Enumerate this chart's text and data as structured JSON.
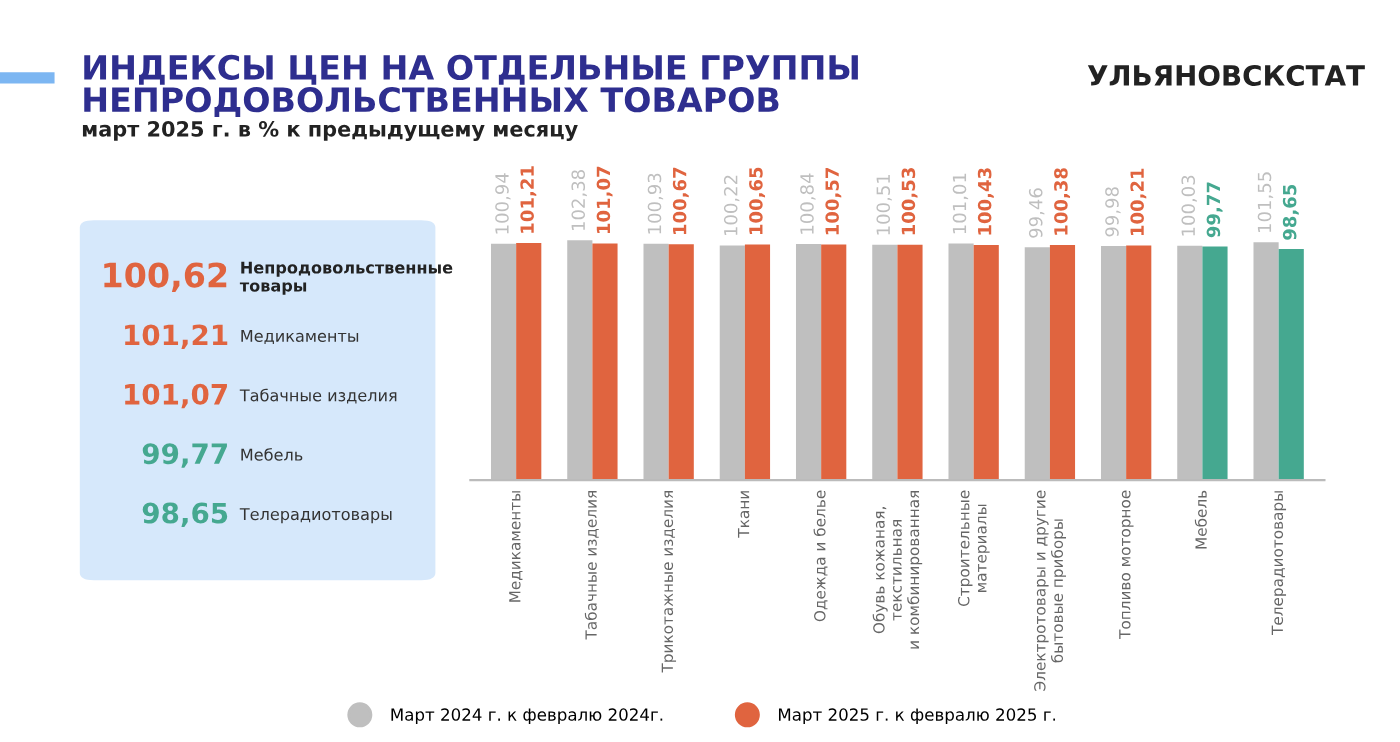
{
  "chart_data": [
    {
      "type": "other",
      "categories": [
        "Непродовольственные\nтовары",
        "Медикаменты",
        "Табачные изделия",
        "Мебель",
        "Телерадиотовары"
      ],
      "value_labels": [
        "100,62",
        "101,21",
        "101,07",
        "99,77",
        "98,65"
      ],
      "colors": [
        "#e0643f",
        "#e0643f",
        "#e0643f",
        "#45a890",
        "#45a890"
      ]
    },
    {
      "type": "bar",
      "title": "ИНДЕКСЫ ЦЕН НА ОТДЕЛЬНЫЕ ГРУППЫ\nНЕПРОДОВОЛЬСТВЕННЫХ ТОВАРОВ",
      "subtitle": "март 2025 г. в % к предыдущему месяцу",
      "annotations": [
        "УЛЬЯНОВСКСТАТ"
      ],
      "categories": [
        "Медикаменты",
        "Табачные изделия",
        "Трикотажные изделия",
        "Ткани",
        "Одежда и белье",
        "Обувь кожаная,\nтекстильная\nи комбинированная",
        "Строительные\nматериалы",
        "Электротовары и другие\nбытовые приборы",
        "Топливо моторное",
        "Мебель",
        "Телерадиотовары"
      ],
      "series": [
        {
          "name": "Март 2024 г. к февралю 2024г.",
          "color": "#bfbfbf",
          "values": [
            100.94,
            102.38,
            100.93,
            100.22,
            100.84,
            100.51,
            101.01,
            99.46,
            99.98,
            100.03,
            101.55
          ],
          "value_labels": [
            "100,94",
            "102,38",
            "100,93",
            "100,22",
            "100,84",
            "100,51",
            "101,01",
            "99,46",
            "99,98",
            "100,03",
            "101,55"
          ]
        },
        {
          "name": "Март 2025 г. к февралю 2025 г.",
          "color": "#e0643f",
          "colors": [
            "#e0643f",
            "#e0643f",
            "#e0643f",
            "#e0643f",
            "#e0643f",
            "#e0643f",
            "#e0643f",
            "#e0643f",
            "#e0643f",
            "#45a890",
            "#45a890"
          ],
          "values": [
            101.21,
            101.07,
            100.67,
            100.65,
            100.57,
            100.53,
            100.43,
            100.38,
            100.21,
            99.77,
            98.65
          ],
          "value_labels": [
            "101,21",
            "101,07",
            "100,67",
            "100,65",
            "100,57",
            "100,53",
            "100,43",
            "100,38",
            "100,21",
            "99,77",
            "98,65"
          ]
        }
      ],
      "tick_labels": "x",
      "legend": "bottom",
      "grid": false
    }
  ]
}
